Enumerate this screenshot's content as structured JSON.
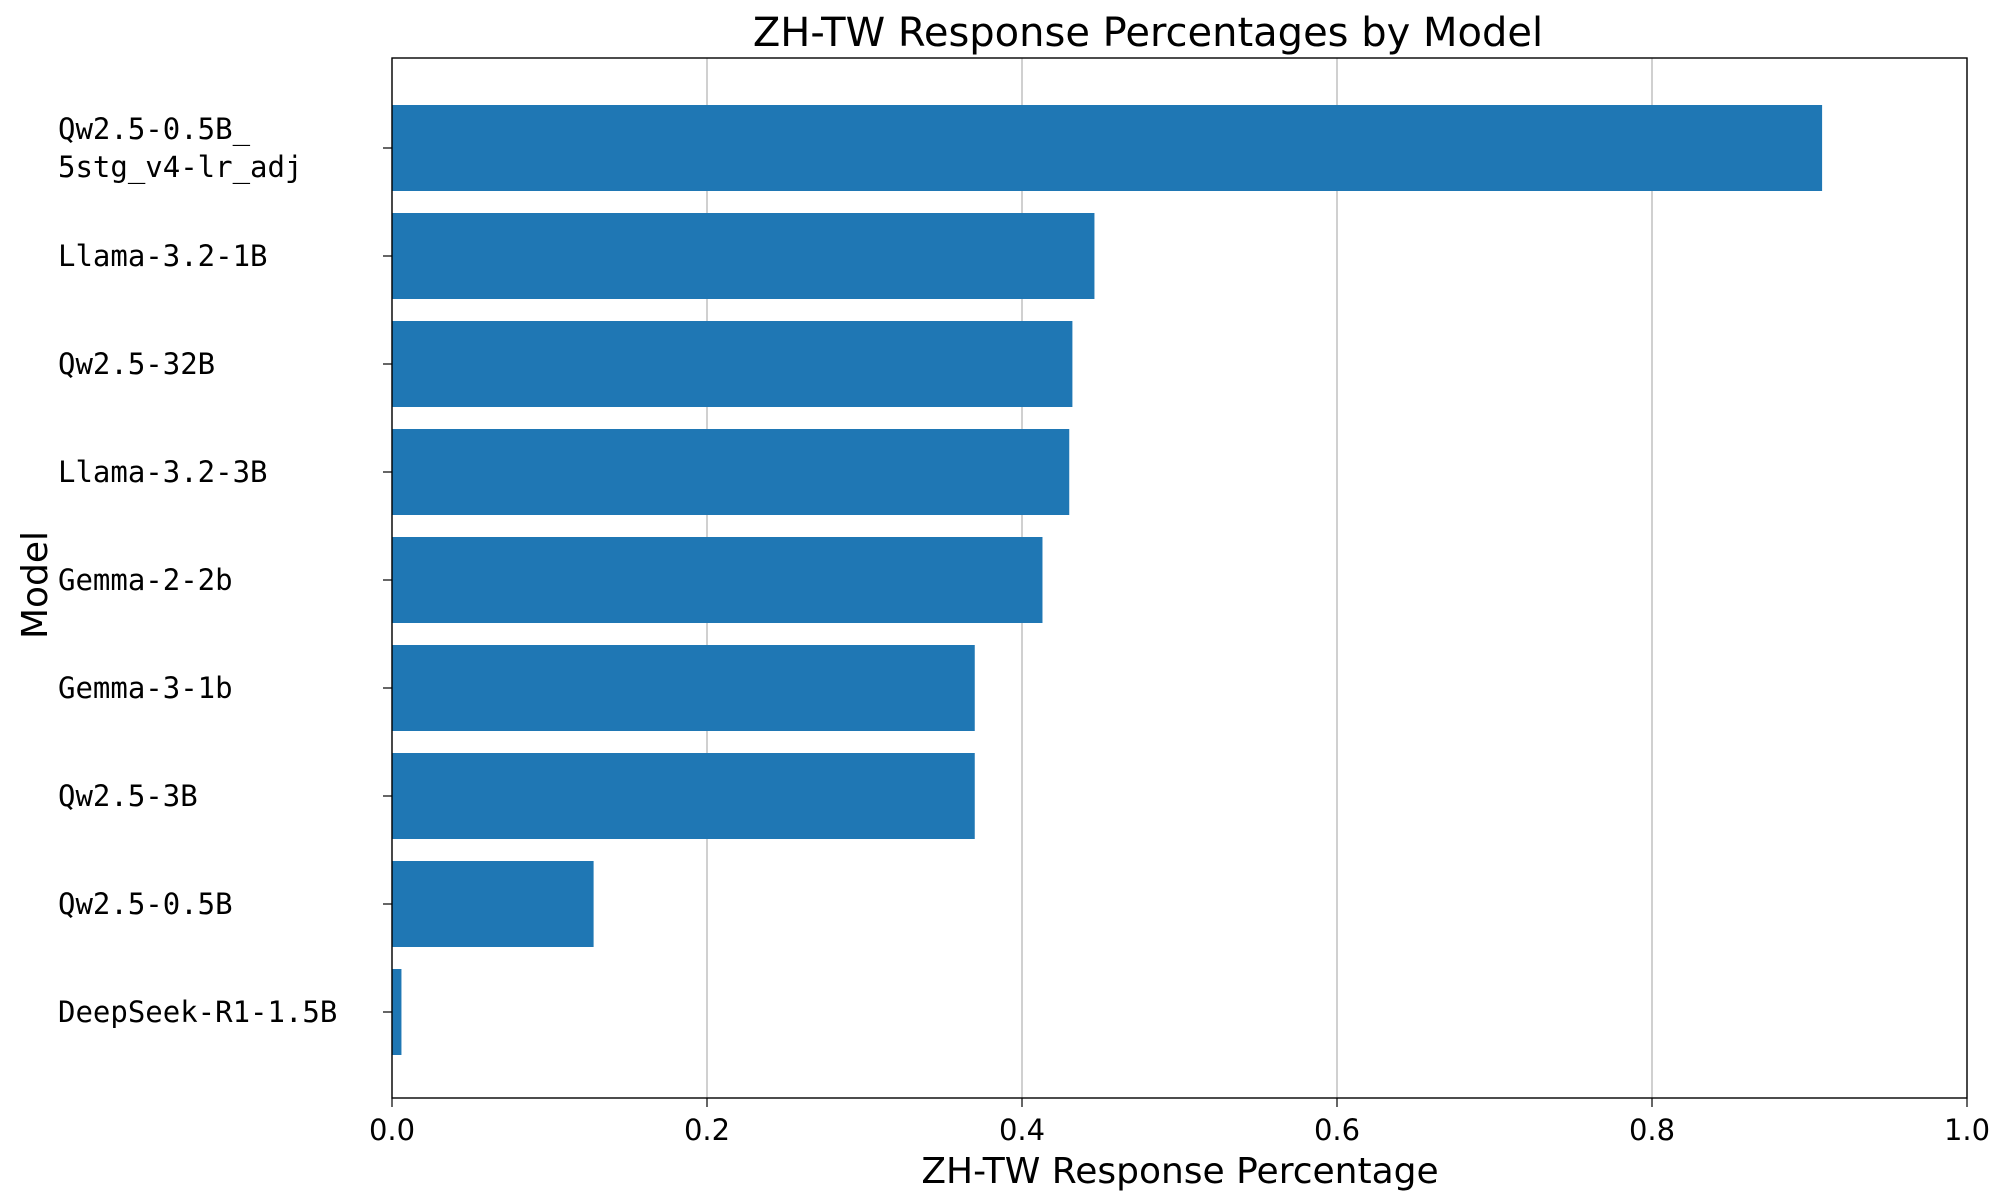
{
  "chart_data": {
    "type": "bar",
    "orientation": "horizontal",
    "title": "ZH-TW Response Percentages by Model",
    "xlabel": "ZH-TW Response Percentage",
    "ylabel": "Model",
    "xlim": [
      0.0,
      1.0
    ],
    "xticks": [
      "0.0",
      "0.2",
      "0.4",
      "0.6",
      "0.8",
      "1.0"
    ],
    "grid": "x",
    "color": "#1f77b4",
    "categories": [
      [
        "Qw2.5-0.5B_",
        "5stg_v4-lr_adj"
      ],
      [
        "Llama-3.2-1B"
      ],
      [
        "Qw2.5-32B"
      ],
      [
        "Llama-3.2-3B"
      ],
      [
        "Gemma-2-2b"
      ],
      [
        "Gemma-3-1b"
      ],
      [
        "Qw2.5-3B"
      ],
      [
        "Qw2.5-0.5B"
      ],
      [
        "DeepSeek-R1-1.5B"
      ]
    ],
    "values": [
      0.908,
      0.446,
      0.432,
      0.43,
      0.413,
      0.37,
      0.37,
      0.128,
      0.006
    ]
  }
}
